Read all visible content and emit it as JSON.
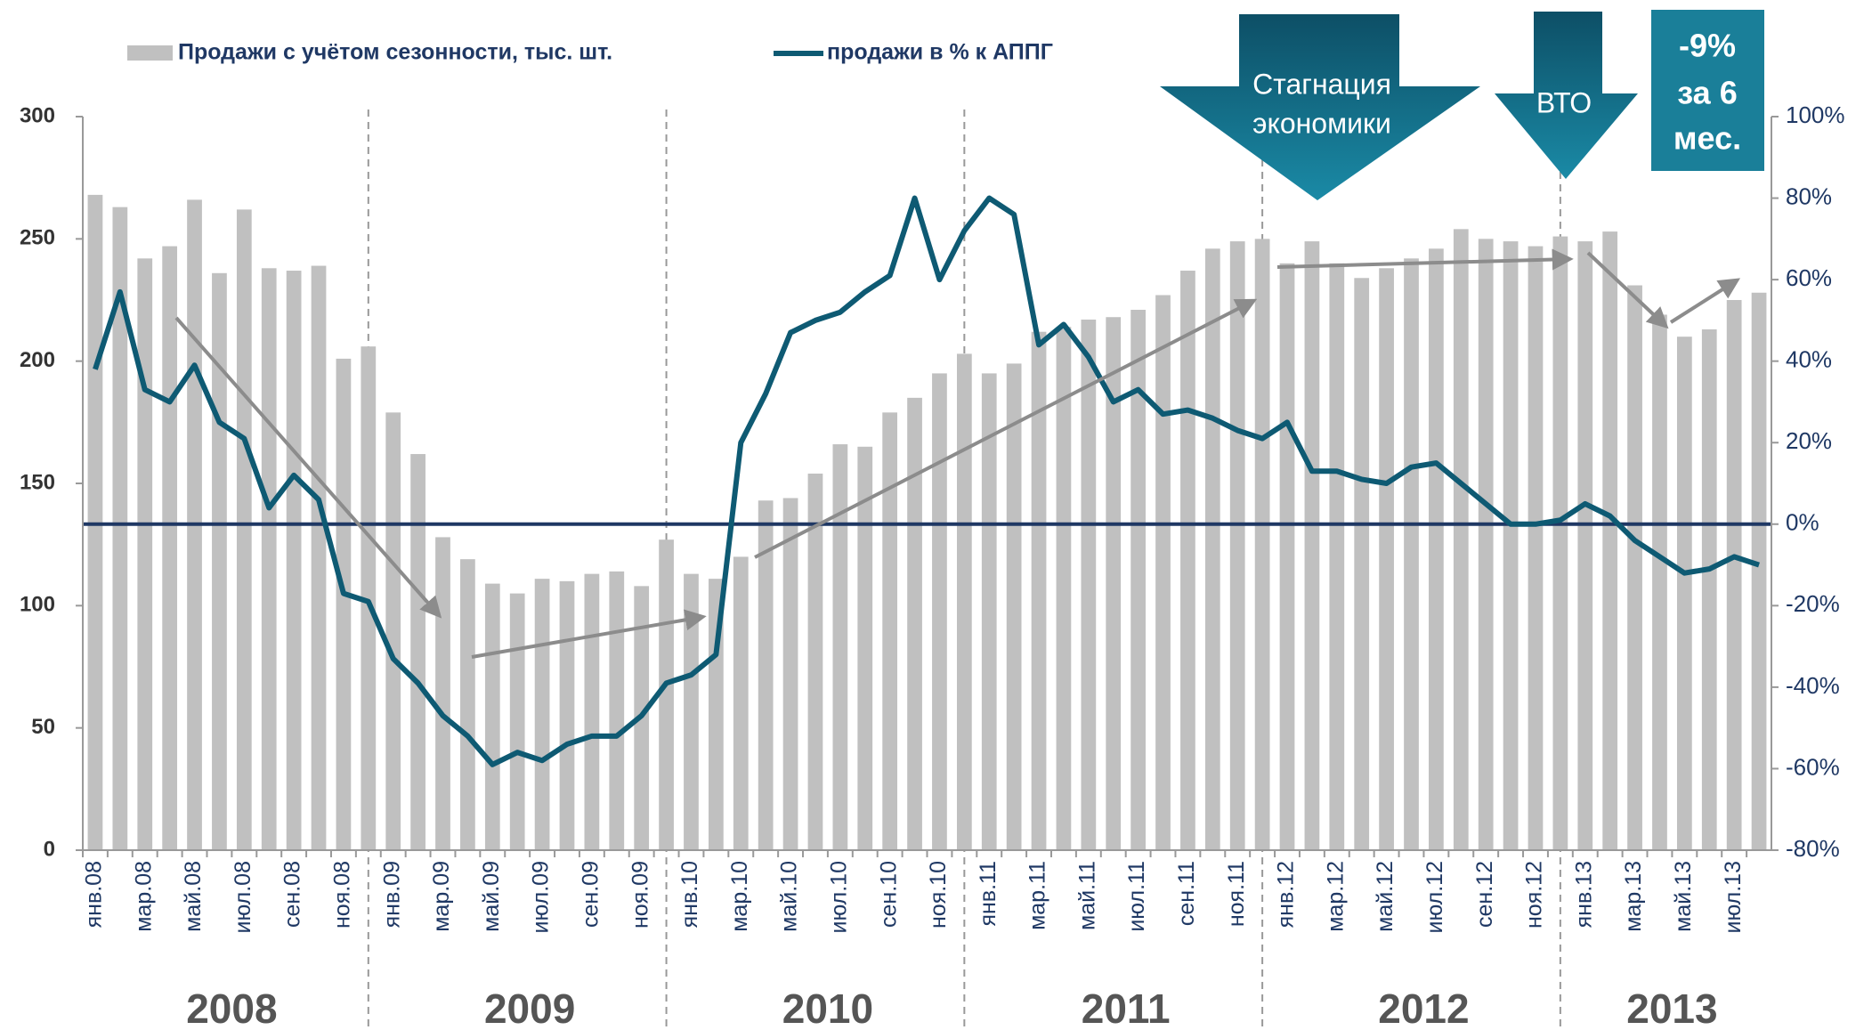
{
  "chart_data": {
    "type": "bar_line",
    "legend": {
      "position": "top-left"
    },
    "categories": [
      "янв.08",
      null,
      "мар.08",
      null,
      "май.08",
      null,
      "июл.08",
      null,
      "сен.08",
      null,
      "ноя.08",
      null,
      "янв.09",
      null,
      "мар.09",
      null,
      "май.09",
      null,
      "июл.09",
      null,
      "сен.09",
      null,
      "ноя.09",
      null,
      "янв.10",
      null,
      "мар.10",
      null,
      "май.10",
      null,
      "июл.10",
      null,
      "сен.10",
      null,
      "ноя.10",
      null,
      "янв.11",
      null,
      "мар.11",
      null,
      "май.11",
      null,
      "июл.11",
      null,
      "сен.11",
      null,
      "ноя.11",
      null,
      "янв.12",
      null,
      "мар.12",
      null,
      "май.12",
      null,
      "июл.12",
      null,
      "сен.12",
      null,
      "ноя.12",
      null,
      "янв.13",
      null,
      "мар.13",
      null,
      "май.13",
      null,
      "июл.13",
      null
    ],
    "years": [
      "2008",
      "2009",
      "2010",
      "2011",
      "2012",
      "2013"
    ],
    "series": [
      {
        "name": "Продажи с учётом сезонности, тыс. шт.",
        "type": "bar",
        "color": "#c0c0c0",
        "axis": "y",
        "values": [
          268,
          263,
          242,
          247,
          266,
          236,
          262,
          238,
          237,
          239,
          201,
          206,
          179,
          162,
          128,
          119,
          109,
          105,
          111,
          110,
          113,
          114,
          108,
          127,
          113,
          111,
          120,
          143,
          144,
          154,
          166,
          165,
          179,
          185,
          195,
          203,
          195,
          199,
          212,
          214,
          217,
          218,
          221,
          227,
          237,
          246,
          249,
          250,
          240,
          249,
          240,
          234,
          238,
          242,
          246,
          254,
          250,
          249,
          247,
          251,
          249,
          253,
          231,
          219,
          210,
          213,
          225,
          228
        ]
      },
      {
        "name": "продажи в % к АППГ",
        "type": "line",
        "color": "#0e5a73",
        "axis": "y2",
        "values": [
          38,
          57,
          33,
          30,
          39,
          25,
          21,
          4,
          12,
          6,
          -17,
          -19,
          -33,
          -39,
          -47,
          -52,
          -59,
          -56,
          -58,
          -54,
          -52,
          -52,
          -47,
          -39,
          -37,
          -32,
          20,
          32,
          47,
          50,
          52,
          57,
          61,
          80,
          60,
          72,
          80,
          76,
          44,
          49,
          41,
          30,
          33,
          27,
          28,
          26,
          23,
          21,
          25,
          13,
          13,
          11,
          10,
          14,
          15,
          10,
          5,
          0,
          0,
          1,
          5,
          2,
          -4,
          -8,
          -12,
          -11,
          -8,
          -10
        ]
      }
    ],
    "ylim": [
      0,
      300
    ],
    "yticks": [
      0,
      50,
      100,
      150,
      200,
      250,
      300
    ],
    "y2lim": [
      -80,
      100
    ],
    "y2ticks": [
      {
        "value": -80,
        "label": "-80%"
      },
      {
        "value": -60,
        "label": "-60%"
      },
      {
        "value": -40,
        "label": "-40%"
      },
      {
        "value": -20,
        "label": "-20%"
      },
      {
        "value": 0,
        "label": "0%"
      },
      {
        "value": 20,
        "label": "20%"
      },
      {
        "value": 40,
        "label": "40%"
      },
      {
        "value": 60,
        "label": "60%"
      },
      {
        "value": 80,
        "label": "80%"
      },
      {
        "value": 100,
        "label": "100%"
      }
    ],
    "annotations": {
      "stagnation": [
        "Стагнация",
        "экономики"
      ],
      "wto": "ВТО",
      "box": [
        "-9%",
        "за 6",
        "мес."
      ]
    }
  }
}
